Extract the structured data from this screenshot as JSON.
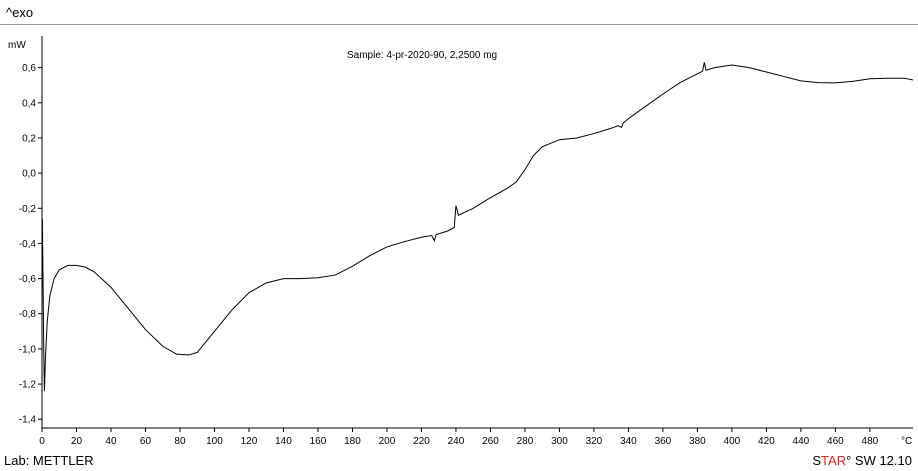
{
  "header": {
    "exo_label": "^exo"
  },
  "footer": {
    "lab_label": "Lab: METTLER",
    "software_prefix": "S",
    "software_brand": "TAR",
    "software_suffix": "° SW 12.10"
  },
  "chart_data": {
    "type": "line",
    "title": "Sample: 4-pr-2020-90, 2,2500 mg",
    "ylabel": "mW",
    "xlabel": "°C",
    "xlim": [
      0,
      505
    ],
    "ylim": [
      -1.45,
      0.78
    ],
    "x_ticks": [
      0,
      20,
      40,
      60,
      80,
      100,
      120,
      140,
      160,
      180,
      200,
      220,
      240,
      260,
      280,
      300,
      320,
      340,
      360,
      380,
      400,
      420,
      440,
      460,
      480
    ],
    "y_ticks": [
      -1.4,
      -1.2,
      -1.0,
      -0.8,
      -0.6,
      -0.4,
      -0.2,
      0.0,
      0.2,
      0.4,
      0.6
    ],
    "x_tick_labels": [
      "0",
      "20",
      "40",
      "60",
      "80",
      "100",
      "120",
      "140",
      "160",
      "180",
      "200",
      "220",
      "240",
      "260",
      "280",
      "300",
      "320",
      "340",
      "360",
      "380",
      "400",
      "420",
      "440",
      "460",
      "480"
    ],
    "y_tick_labels": [
      "-1,4",
      "-1,2",
      "-1,0",
      "-0,8",
      "-0,6",
      "-0,4",
      "-0,2",
      "0,0",
      "0,2",
      "0,4",
      "0,6"
    ],
    "grid": false,
    "series": [
      {
        "name": "",
        "color": "#000000",
        "points": [
          [
            0.2,
            -0.26
          ],
          [
            0.6,
            -0.6
          ],
          [
            1.0,
            -1.0
          ],
          [
            1.4,
            -1.24
          ],
          [
            2.0,
            -1.05
          ],
          [
            3.0,
            -0.85
          ],
          [
            4.5,
            -0.7
          ],
          [
            7,
            -0.6
          ],
          [
            10,
            -0.55
          ],
          [
            15,
            -0.525
          ],
          [
            20,
            -0.525
          ],
          [
            25,
            -0.535
          ],
          [
            30,
            -0.56
          ],
          [
            40,
            -0.65
          ],
          [
            50,
            -0.77
          ],
          [
            60,
            -0.89
          ],
          [
            70,
            -0.985
          ],
          [
            78,
            -1.03
          ],
          [
            85,
            -1.035
          ],
          [
            90,
            -1.02
          ],
          [
            100,
            -0.9
          ],
          [
            110,
            -0.78
          ],
          [
            120,
            -0.68
          ],
          [
            130,
            -0.625
          ],
          [
            140,
            -0.6
          ],
          [
            150,
            -0.6
          ],
          [
            160,
            -0.595
          ],
          [
            170,
            -0.58
          ],
          [
            180,
            -0.53
          ],
          [
            190,
            -0.47
          ],
          [
            200,
            -0.42
          ],
          [
            210,
            -0.39
          ],
          [
            220,
            -0.365
          ],
          [
            226,
            -0.355
          ],
          [
            227.5,
            -0.385
          ],
          [
            228.5,
            -0.35
          ],
          [
            235,
            -0.33
          ],
          [
            239,
            -0.31
          ],
          [
            240,
            -0.185
          ],
          [
            241.5,
            -0.24
          ],
          [
            250,
            -0.2
          ],
          [
            260,
            -0.14
          ],
          [
            270,
            -0.085
          ],
          [
            275,
            -0.05
          ],
          [
            280,
            0.02
          ],
          [
            285,
            0.1
          ],
          [
            290,
            0.15
          ],
          [
            300,
            0.19
          ],
          [
            310,
            0.2
          ],
          [
            320,
            0.225
          ],
          [
            330,
            0.255
          ],
          [
            334,
            0.27
          ],
          [
            336,
            0.26
          ],
          [
            337,
            0.285
          ],
          [
            340,
            0.31
          ],
          [
            350,
            0.38
          ],
          [
            360,
            0.45
          ],
          [
            370,
            0.515
          ],
          [
            380,
            0.565
          ],
          [
            383,
            0.58
          ],
          [
            384,
            0.63
          ],
          [
            385,
            0.585
          ],
          [
            390,
            0.6
          ],
          [
            400,
            0.615
          ],
          [
            410,
            0.6
          ],
          [
            420,
            0.575
          ],
          [
            430,
            0.55
          ],
          [
            440,
            0.525
          ],
          [
            450,
            0.515
          ],
          [
            460,
            0.513
          ],
          [
            470,
            0.522
          ],
          [
            480,
            0.537
          ],
          [
            490,
            0.54
          ],
          [
            500,
            0.54
          ],
          [
            505,
            0.53
          ]
        ]
      }
    ]
  }
}
